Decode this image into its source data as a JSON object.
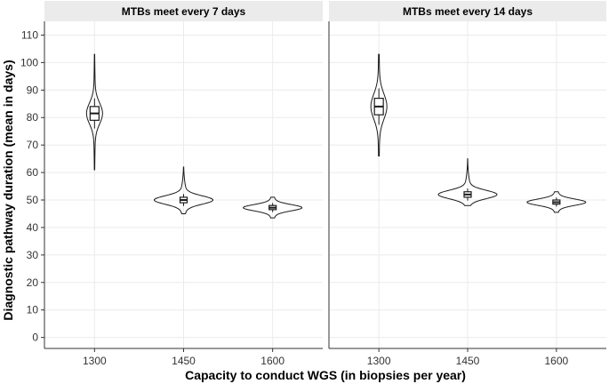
{
  "chart_data": [
    {
      "type": "violin",
      "panel_title": "MTBs meet every 7 days",
      "x_categories": [
        "1300",
        "1450",
        "1600"
      ],
      "ylabel": "Diagnostic pathway duration (mean in days)",
      "ylim": [
        -4,
        115
      ],
      "yticks": [
        0,
        10,
        20,
        30,
        40,
        50,
        60,
        70,
        80,
        90,
        100,
        110
      ],
      "distributions": [
        {
          "x": "1300",
          "min": 61,
          "q1": 79,
          "median": 81.5,
          "q3": 84,
          "max": 103
        },
        {
          "x": "1450",
          "min": 45,
          "q1": 49,
          "median": 50,
          "q3": 51,
          "max": 62
        },
        {
          "x": "1600",
          "min": 43.5,
          "q1": 46.5,
          "median": 47.2,
          "q3": 48,
          "max": 51
        }
      ]
    },
    {
      "type": "violin",
      "panel_title": "MTBs meet every 14 days",
      "x_categories": [
        "1300",
        "1450",
        "1600"
      ],
      "ylim": [
        -4,
        115
      ],
      "distributions": [
        {
          "x": "1300",
          "min": 66,
          "q1": 81,
          "median": 84,
          "q3": 87,
          "max": 103
        },
        {
          "x": "1450",
          "min": 48,
          "q1": 51,
          "median": 52,
          "q3": 53,
          "max": 65
        },
        {
          "x": "1600",
          "min": 45.5,
          "q1": 48.5,
          "median": 49.2,
          "q3": 50,
          "max": 53
        }
      ]
    }
  ],
  "xlabel": "Capacity to conduct WGS (in biopsies per year)",
  "colors": {
    "strip": "#ebebeb",
    "grid": "#ebebeb",
    "axis": "#333333",
    "violin": "#1a1a1a",
    "text": "#000000"
  }
}
